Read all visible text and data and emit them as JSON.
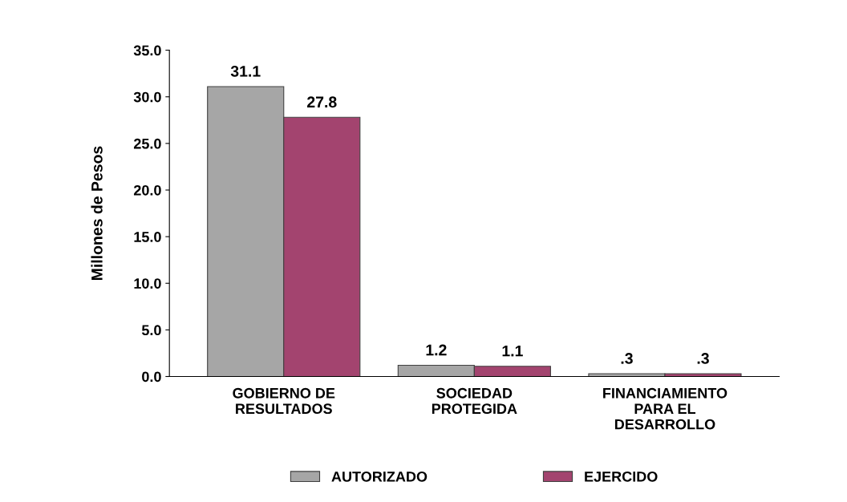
{
  "chart_data": {
    "type": "bar",
    "ylabel": "Millones de Pesos",
    "categories": [
      "GOBIERNO DE\nRESULTADOS",
      "SOCIEDAD\nPROTEGIDA",
      "FINANCIAMIENTO\nPARA EL\nDESARROLLO"
    ],
    "series": [
      {
        "name": "AUTORIZADO",
        "color": "#a6a6a6",
        "values": [
          31.1,
          1.2,
          0.3
        ],
        "value_labels": [
          "31.1",
          "1.2",
          ".3"
        ]
      },
      {
        "name": "EJERCIDO",
        "color": "#a3446f",
        "values": [
          27.8,
          1.1,
          0.3
        ],
        "value_labels": [
          "27.8",
          "1.1",
          ".3"
        ]
      }
    ],
    "ylim": [
      0,
      35
    ],
    "yticks": [
      {
        "value": 0,
        "label": "0.0"
      },
      {
        "value": 5,
        "label": "5.0"
      },
      {
        "value": 10,
        "label": "10.0"
      },
      {
        "value": 15,
        "label": "15.0"
      },
      {
        "value": 20,
        "label": "20.0"
      },
      {
        "value": 25,
        "label": "25.0"
      },
      {
        "value": 30,
        "label": "30.0"
      },
      {
        "value": 35,
        "label": "35.0"
      }
    ],
    "legend": "bottom",
    "grid": false
  }
}
